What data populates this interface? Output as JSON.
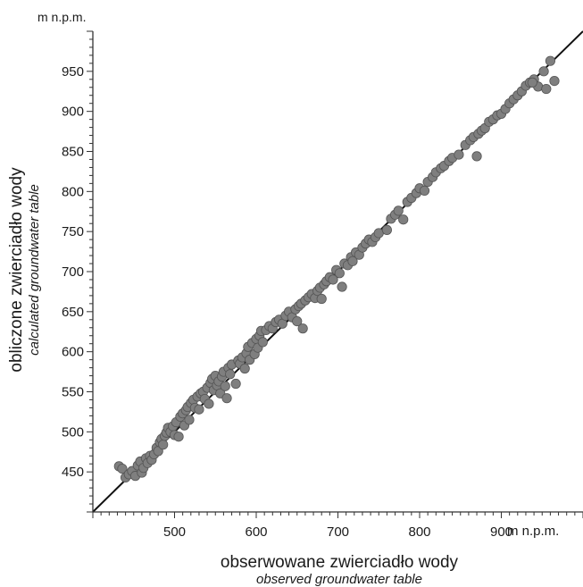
{
  "chart_data": {
    "type": "scatter",
    "y_unit": "m n.p.m.",
    "x_unit": "m n.p.m.",
    "xlabel": "obserwowane zwierciadło wody",
    "xlabel_en": "observed groundwater table",
    "ylabel": "obliczone zwierciadło wody",
    "ylabel_en": "calculated groundwater table",
    "xlim": [
      400,
      1000
    ],
    "ylim": [
      400,
      1000
    ],
    "x_ticks": [
      500,
      600,
      700,
      800,
      900
    ],
    "x_tick_labels": [
      "500",
      "600",
      "700",
      "800",
      "900"
    ],
    "y_ticks": [
      450,
      500,
      550,
      600,
      650,
      700,
      750,
      800,
      850,
      900,
      950
    ],
    "y_tick_labels": [
      "450",
      "500",
      "550",
      "600",
      "650",
      "700",
      "750",
      "800",
      "850",
      "900",
      "950"
    ],
    "grid": false,
    "reference_line": {
      "type": "1:1",
      "from": [
        400,
        400
      ],
      "to": [
        1000,
        1000
      ]
    },
    "colors": {
      "points": "#7f7f7f",
      "point_edge": "#555555",
      "line": "#111111",
      "axis": "#333333"
    },
    "points": [
      [
        432,
        457
      ],
      [
        436,
        454
      ],
      [
        440,
        443
      ],
      [
        444,
        447
      ],
      [
        448,
        451
      ],
      [
        452,
        445
      ],
      [
        455,
        458
      ],
      [
        458,
        463
      ],
      [
        460,
        449
      ],
      [
        462,
        455
      ],
      [
        465,
        467
      ],
      [
        467,
        461
      ],
      [
        470,
        470
      ],
      [
        472,
        465
      ],
      [
        475,
        472
      ],
      [
        478,
        480
      ],
      [
        480,
        476
      ],
      [
        482,
        487
      ],
      [
        484,
        491
      ],
      [
        486,
        484
      ],
      [
        488,
        495
      ],
      [
        490,
        499
      ],
      [
        492,
        505
      ],
      [
        495,
        500
      ],
      [
        498,
        507
      ],
      [
        500,
        496
      ],
      [
        502,
        512
      ],
      [
        505,
        494
      ],
      [
        507,
        519
      ],
      [
        510,
        523
      ],
      [
        512,
        508
      ],
      [
        514,
        527
      ],
      [
        516,
        531
      ],
      [
        518,
        515
      ],
      [
        520,
        536
      ],
      [
        523,
        540
      ],
      [
        525,
        530
      ],
      [
        528,
        544
      ],
      [
        530,
        528
      ],
      [
        532,
        548
      ],
      [
        535,
        550
      ],
      [
        537,
        541
      ],
      [
        540,
        555
      ],
      [
        542,
        535
      ],
      [
        544,
        561
      ],
      [
        546,
        566
      ],
      [
        548,
        552
      ],
      [
        550,
        570
      ],
      [
        552,
        558
      ],
      [
        554,
        563
      ],
      [
        556,
        548
      ],
      [
        558,
        569
      ],
      [
        560,
        575
      ],
      [
        562,
        557
      ],
      [
        564,
        542
      ],
      [
        566,
        580
      ],
      [
        568,
        572
      ],
      [
        570,
        584
      ],
      [
        575,
        560
      ],
      [
        578,
        589
      ],
      [
        580,
        585
      ],
      [
        583,
        593
      ],
      [
        586,
        579
      ],
      [
        588,
        598
      ],
      [
        590,
        606
      ],
      [
        592,
        590
      ],
      [
        595,
        611
      ],
      [
        598,
        597
      ],
      [
        600,
        616
      ],
      [
        602,
        605
      ],
      [
        604,
        620
      ],
      [
        606,
        626
      ],
      [
        608,
        612
      ],
      [
        612,
        627
      ],
      [
        616,
        632
      ],
      [
        620,
        629
      ],
      [
        624,
        637
      ],
      [
        628,
        640
      ],
      [
        632,
        635
      ],
      [
        636,
        645
      ],
      [
        640,
        650
      ],
      [
        644,
        643
      ],
      [
        648,
        653
      ],
      [
        650,
        638
      ],
      [
        652,
        657
      ],
      [
        655,
        660
      ],
      [
        657,
        629
      ],
      [
        660,
        664
      ],
      [
        664,
        668
      ],
      [
        668,
        672
      ],
      [
        672,
        667
      ],
      [
        675,
        676
      ],
      [
        678,
        680
      ],
      [
        680,
        666
      ],
      [
        683,
        684
      ],
      [
        686,
        688
      ],
      [
        690,
        693
      ],
      [
        694,
        690
      ],
      [
        698,
        702
      ],
      [
        702,
        698
      ],
      [
        705,
        681
      ],
      [
        708,
        710
      ],
      [
        712,
        708
      ],
      [
        716,
        718
      ],
      [
        718,
        713
      ],
      [
        722,
        724
      ],
      [
        726,
        721
      ],
      [
        730,
        730
      ],
      [
        734,
        735
      ],
      [
        738,
        740
      ],
      [
        742,
        737
      ],
      [
        746,
        743
      ],
      [
        750,
        748
      ],
      [
        760,
        752
      ],
      [
        765,
        766
      ],
      [
        770,
        771
      ],
      [
        774,
        776
      ],
      [
        780,
        765
      ],
      [
        785,
        787
      ],
      [
        790,
        792
      ],
      [
        796,
        798
      ],
      [
        800,
        804
      ],
      [
        806,
        801
      ],
      [
        810,
        812
      ],
      [
        816,
        818
      ],
      [
        820,
        824
      ],
      [
        826,
        829
      ],
      [
        830,
        832
      ],
      [
        836,
        838
      ],
      [
        840,
        842
      ],
      [
        848,
        846
      ],
      [
        856,
        858
      ],
      [
        862,
        864
      ],
      [
        866,
        868
      ],
      [
        870,
        844
      ],
      [
        872,
        872
      ],
      [
        876,
        876
      ],
      [
        880,
        879
      ],
      [
        885,
        887
      ],
      [
        890,
        890
      ],
      [
        895,
        895
      ],
      [
        900,
        897
      ],
      [
        905,
        903
      ],
      [
        910,
        910
      ],
      [
        915,
        915
      ],
      [
        920,
        920
      ],
      [
        925,
        925
      ],
      [
        930,
        932
      ],
      [
        935,
        936
      ],
      [
        940,
        940
      ],
      [
        945,
        931
      ],
      [
        960,
        963
      ],
      [
        965,
        938
      ],
      [
        955,
        928
      ],
      [
        938,
        936
      ],
      [
        952,
        950
      ]
    ]
  }
}
